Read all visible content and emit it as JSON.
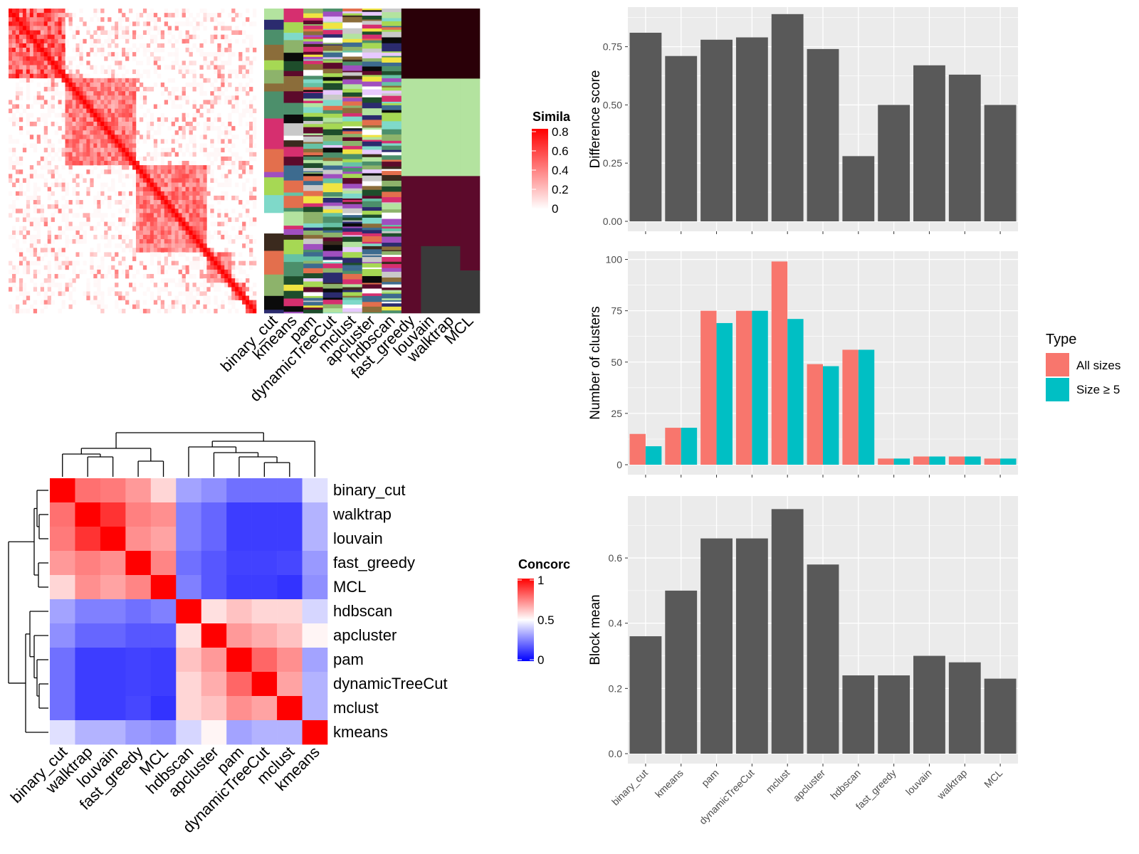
{
  "methods": [
    "binary_cut",
    "kmeans",
    "pam",
    "dynamicTreeCut",
    "mclust",
    "apcluster",
    "hdbscan",
    "fast_greedy",
    "louvain",
    "walktrap",
    "MCL"
  ],
  "colors": {
    "bar_gray": "#595959",
    "panel_bg": "#ebebeb",
    "grid": "#ffffff",
    "all_sizes": "#f8766d",
    "size_ge_5": "#00bfc4",
    "sim_high": "#ff0000",
    "sim_low": "#ffffff",
    "conc_high": "#ff0000",
    "conc_mid": "#ffffff",
    "conc_low": "#0000ff"
  },
  "similarity_legend": {
    "title": "Simila",
    "ticks": [
      "0.8",
      "0.6",
      "0.4",
      "0.2",
      "0"
    ]
  },
  "concordance_legend": {
    "title": "Concorc",
    "ticks": [
      "1",
      "0.5",
      "0"
    ]
  },
  "type_legend": {
    "title": "Type",
    "items": [
      "All sizes",
      "Size ≥ 5"
    ]
  },
  "concordance_order": [
    "binary_cut",
    "walktrap",
    "louvain",
    "fast_greedy",
    "MCL",
    "hdbscan",
    "apcluster",
    "pam",
    "dynamicTreeCut",
    "mclust",
    "kmeans"
  ],
  "chart_data": [
    {
      "type": "bar",
      "categories": [
        "binary_cut",
        "kmeans",
        "pam",
        "dynamicTreeCut",
        "mclust",
        "apcluster",
        "hdbscan",
        "fast_greedy",
        "louvain",
        "walktrap",
        "MCL"
      ],
      "values": [
        0.81,
        0.71,
        0.78,
        0.79,
        0.89,
        0.74,
        0.28,
        0.5,
        0.67,
        0.63,
        0.5
      ],
      "ylabel": "Difference score",
      "ylim": [
        0,
        0.92
      ],
      "yticks": [
        "0.00",
        "0.25",
        "0.50",
        "0.75"
      ],
      "grid": true
    },
    {
      "type": "bar",
      "categories": [
        "binary_cut",
        "kmeans",
        "pam",
        "dynamicTreeCut",
        "mclust",
        "apcluster",
        "hdbscan",
        "fast_greedy",
        "louvain",
        "walktrap",
        "MCL"
      ],
      "series": [
        {
          "name": "All sizes",
          "values": [
            15,
            18,
            75,
            75,
            99,
            49,
            56,
            3,
            4,
            4,
            3
          ]
        },
        {
          "name": "Size ≥ 5",
          "values": [
            9,
            18,
            69,
            75,
            71,
            48,
            56,
            3,
            4,
            4,
            3
          ]
        }
      ],
      "ylabel": "Number of clusters",
      "ylim": [
        0,
        104
      ],
      "yticks": [
        "0",
        "25",
        "50",
        "75",
        "100"
      ],
      "grid": true,
      "legend": "right"
    },
    {
      "type": "bar",
      "categories": [
        "binary_cut",
        "kmeans",
        "pam",
        "dynamicTreeCut",
        "mclust",
        "apcluster",
        "hdbscan",
        "fast_greedy",
        "louvain",
        "walktrap",
        "MCL"
      ],
      "values": [
        0.36,
        0.5,
        0.66,
        0.66,
        0.75,
        0.58,
        0.24,
        0.24,
        0.3,
        0.28,
        0.23
      ],
      "ylabel": "Block mean",
      "ylim": [
        0,
        0.79
      ],
      "yticks": [
        "0.0",
        "0.2",
        "0.4",
        "0.6"
      ],
      "grid": true
    },
    {
      "type": "heatmap",
      "rows": [
        "binary_cut",
        "walktrap",
        "louvain",
        "fast_greedy",
        "MCL",
        "hdbscan",
        "apcluster",
        "pam",
        "dynamicTreeCut",
        "mclust",
        "kmeans"
      ],
      "columns": [
        "binary_cut",
        "walktrap",
        "louvain",
        "fast_greedy",
        "MCL",
        "hdbscan",
        "apcluster",
        "pam",
        "dynamicTreeCut",
        "mclust",
        "kmeans"
      ],
      "values": [
        [
          1.0,
          0.78,
          0.76,
          0.7,
          0.58,
          0.32,
          0.28,
          0.22,
          0.22,
          0.22,
          0.44
        ],
        [
          0.78,
          1.0,
          0.9,
          0.75,
          0.72,
          0.25,
          0.2,
          0.12,
          0.12,
          0.12,
          0.35
        ],
        [
          0.76,
          0.9,
          1.0,
          0.72,
          0.68,
          0.25,
          0.2,
          0.12,
          0.12,
          0.12,
          0.35
        ],
        [
          0.7,
          0.75,
          0.72,
          1.0,
          0.74,
          0.22,
          0.17,
          0.13,
          0.13,
          0.14,
          0.3
        ],
        [
          0.58,
          0.72,
          0.68,
          0.74,
          1.0,
          0.25,
          0.17,
          0.12,
          0.12,
          0.1,
          0.28
        ],
        [
          0.32,
          0.25,
          0.25,
          0.22,
          0.25,
          1.0,
          0.56,
          0.62,
          0.58,
          0.58,
          0.42
        ],
        [
          0.28,
          0.2,
          0.2,
          0.17,
          0.17,
          0.56,
          1.0,
          0.7,
          0.66,
          0.62,
          0.52
        ],
        [
          0.22,
          0.12,
          0.12,
          0.13,
          0.12,
          0.62,
          0.7,
          1.0,
          0.8,
          0.72,
          0.32
        ],
        [
          0.22,
          0.12,
          0.12,
          0.13,
          0.12,
          0.58,
          0.66,
          0.8,
          1.0,
          0.68,
          0.35
        ],
        [
          0.22,
          0.12,
          0.12,
          0.14,
          0.1,
          0.58,
          0.62,
          0.72,
          0.68,
          1.0,
          0.35
        ],
        [
          0.44,
          0.35,
          0.35,
          0.3,
          0.28,
          0.42,
          0.52,
          0.32,
          0.35,
          0.35,
          1.0
        ]
      ],
      "legend_title": "Concorc"
    }
  ]
}
